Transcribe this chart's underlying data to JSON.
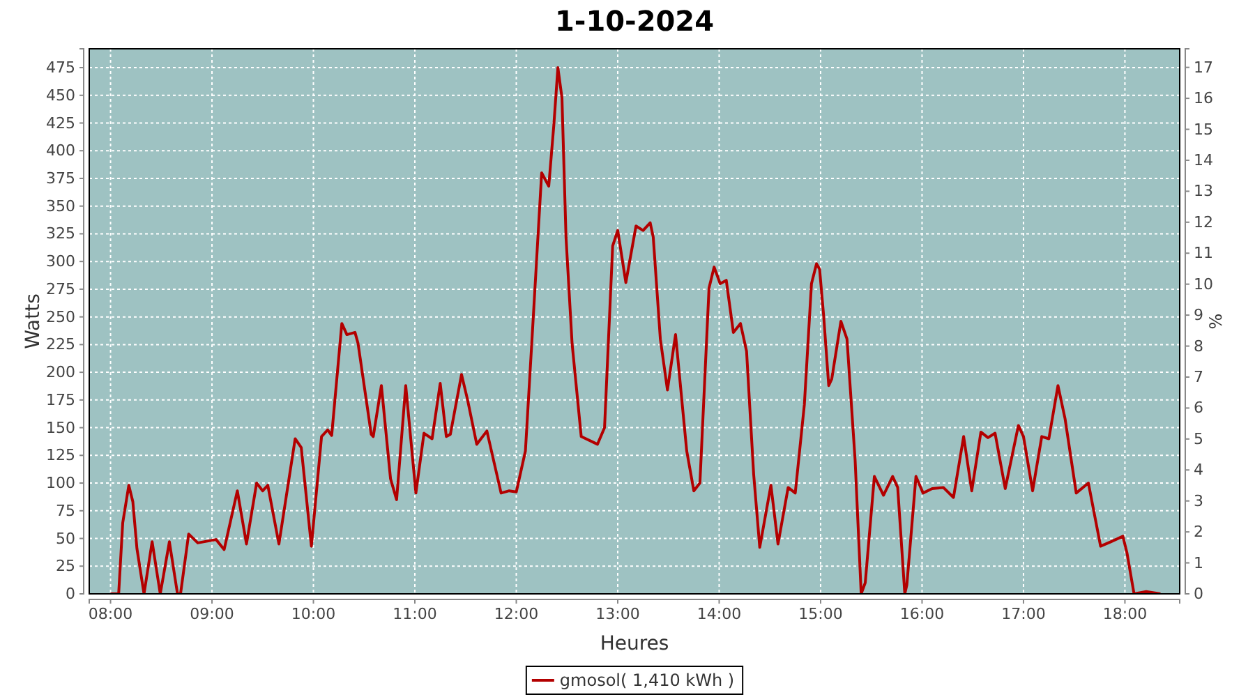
{
  "chart_data": {
    "type": "line",
    "title": "1-10-2024",
    "xlabel": "Heures",
    "ylabel": "Watts",
    "y2label": "%",
    "xlim": [
      7.79,
      18.54
    ],
    "xticks": [
      {
        "value": 8,
        "label": "08:00"
      },
      {
        "value": 9,
        "label": "09:00"
      },
      {
        "value": 10,
        "label": "10:00"
      },
      {
        "value": 11,
        "label": "11:00"
      },
      {
        "value": 12,
        "label": "12:00"
      },
      {
        "value": 13,
        "label": "13:00"
      },
      {
        "value": 14,
        "label": "14:00"
      },
      {
        "value": 15,
        "label": "15:00"
      },
      {
        "value": 16,
        "label": "16:00"
      },
      {
        "value": 17,
        "label": "17:00"
      },
      {
        "value": 18,
        "label": "18:00"
      }
    ],
    "ylim": [
      0,
      492
    ],
    "yticks": [
      0,
      25,
      50,
      75,
      100,
      125,
      150,
      175,
      200,
      225,
      250,
      275,
      300,
      325,
      350,
      375,
      400,
      425,
      450,
      475
    ],
    "y2lim": [
      0,
      17.6
    ],
    "y2ticks": [
      0,
      1,
      2,
      3,
      4,
      5,
      6,
      7,
      8,
      9,
      10,
      11,
      12,
      13,
      14,
      15,
      16,
      17
    ],
    "grid": true,
    "legend": "bottom",
    "marker": "none",
    "line_style": "solid",
    "series": [
      {
        "name": "gmosol( 1,410 kWh )",
        "color": "#b30000",
        "x": [
          8.0,
          8.08,
          8.12,
          8.18,
          8.22,
          8.26,
          8.33,
          8.41,
          8.49,
          8.58,
          8.66,
          8.69,
          8.77,
          8.86,
          9.04,
          9.12,
          9.25,
          9.34,
          9.44,
          9.5,
          9.55,
          9.66,
          9.82,
          9.88,
          9.98,
          10.08,
          10.14,
          10.18,
          10.28,
          10.33,
          10.41,
          10.44,
          10.57,
          10.59,
          10.67,
          10.76,
          10.82,
          10.91,
          11.01,
          11.09,
          11.17,
          11.25,
          11.31,
          11.35,
          11.46,
          11.52,
          11.61,
          11.71,
          11.85,
          11.93,
          12.0,
          12.09,
          12.16,
          12.25,
          12.32,
          12.37,
          12.41,
          12.45,
          12.49,
          12.55,
          12.64,
          12.8,
          12.87,
          12.95,
          13.0,
          13.08,
          13.18,
          13.25,
          13.32,
          13.35,
          13.42,
          13.49,
          13.57,
          13.68,
          13.75,
          13.81,
          13.9,
          13.95,
          14.01,
          14.07,
          14.14,
          14.21,
          14.27,
          14.34,
          14.4,
          14.51,
          14.58,
          14.68,
          14.75,
          14.84,
          14.91,
          14.96,
          14.99,
          15.03,
          15.08,
          15.11,
          15.2,
          15.26,
          15.34,
          15.4,
          15.44,
          15.53,
          15.62,
          15.71,
          15.76,
          15.83,
          15.85,
          15.94,
          16.01,
          16.1,
          16.21,
          16.31,
          16.41,
          16.49,
          16.58,
          16.65,
          16.72,
          16.82,
          16.95,
          17.0,
          17.09,
          17.18,
          17.25,
          17.34,
          17.41,
          17.52,
          17.64,
          17.76,
          17.86,
          17.98,
          18.02,
          18.09,
          18.21,
          18.35
        ],
        "values": [
          0,
          0,
          64,
          98,
          83,
          41,
          0,
          47,
          0,
          47,
          0,
          0,
          54,
          46,
          49,
          40,
          93,
          45,
          100,
          93,
          98,
          45,
          140,
          132,
          43,
          142,
          148,
          143,
          244,
          234,
          236,
          226,
          144,
          142,
          188,
          104,
          85,
          188,
          91,
          145,
          140,
          190,
          142,
          144,
          198,
          175,
          135,
          147,
          91,
          93,
          92,
          129,
          238,
          380,
          368,
          423,
          475,
          448,
          322,
          226,
          142,
          135,
          150,
          314,
          328,
          281,
          332,
          328,
          335,
          322,
          230,
          184,
          234,
          129,
          93,
          100,
          276,
          295,
          280,
          283,
          236,
          244,
          219,
          108,
          42,
          98,
          45,
          96,
          91,
          171,
          280,
          298,
          293,
          251,
          188,
          194,
          246,
          230,
          121,
          0,
          10,
          106,
          89,
          106,
          96,
          0,
          8,
          106,
          91,
          95,
          96,
          87,
          142,
          93,
          146,
          141,
          145,
          95,
          152,
          142,
          93,
          142,
          140,
          188,
          158,
          91,
          100,
          43,
          47,
          52,
          37,
          0,
          2,
          0
        ]
      }
    ]
  }
}
